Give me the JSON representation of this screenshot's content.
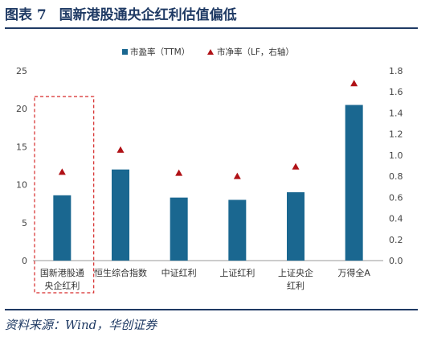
{
  "figure": {
    "label": "图表 7",
    "title": "国新港股通央企红利估值偏低",
    "source": "资料来源：Wind，华创证券"
  },
  "colors": {
    "bar": "#1a6790",
    "marker": "#b01116",
    "highlight_box": "#d62a2a",
    "title": "#1f3a64"
  },
  "chart_data": {
    "type": "bar",
    "categories": [
      "国新港股通央企红利",
      "恒生综合指数",
      "中证红利",
      "上证红利",
      "上证央企红利",
      "万得全A"
    ],
    "category_lines": [
      [
        "国新港股通",
        "央企红利"
      ],
      [
        "恒生综合指数"
      ],
      [
        "中证红利"
      ],
      [
        "上证红利"
      ],
      [
        "上证央企",
        "红利"
      ],
      [
        "万得全A"
      ]
    ],
    "series": [
      {
        "name": "市盈率（TTM）",
        "type": "bar",
        "axis": "left",
        "values": [
          8.6,
          12.0,
          8.3,
          8.0,
          9.0,
          20.5
        ]
      },
      {
        "name": "市净率（LF，右轴）",
        "type": "scatter",
        "axis": "right",
        "values": [
          0.84,
          1.05,
          0.83,
          0.8,
          0.89,
          1.68
        ]
      }
    ],
    "y_left": {
      "min": 0,
      "max": 25,
      "ticks": [
        0,
        5,
        10,
        15,
        20,
        25
      ]
    },
    "y_right": {
      "min": 0,
      "max": 1.8,
      "ticks": [
        "0.0",
        "0.2",
        "0.4",
        "0.6",
        "0.8",
        "1.0",
        "1.2",
        "1.4",
        "1.6",
        "1.8"
      ]
    },
    "legend_position": "top",
    "highlighted_category": "国新港股通央企红利",
    "grid": false
  }
}
